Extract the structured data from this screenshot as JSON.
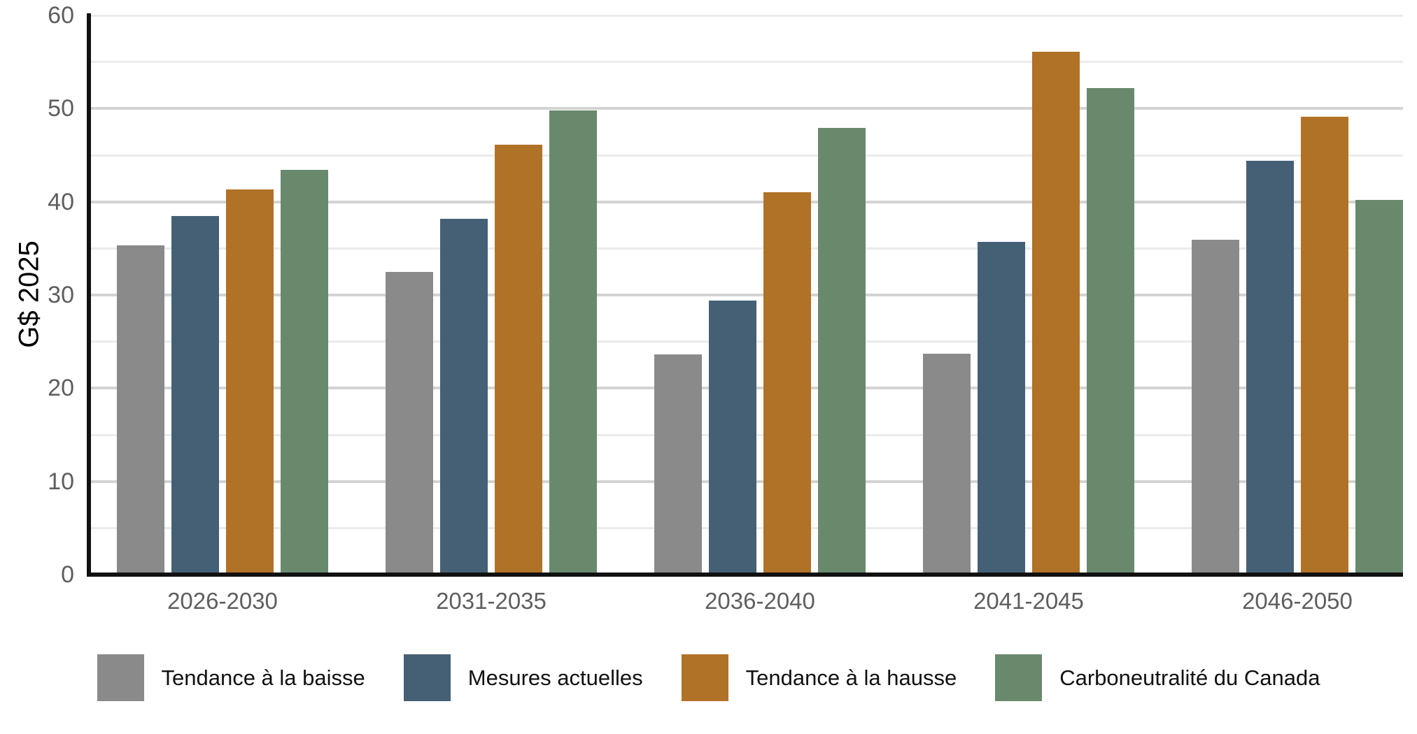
{
  "chart_data": {
    "type": "bar",
    "title": "",
    "ylabel": "G$ 2025",
    "xlabel": "",
    "ylim": [
      0,
      60
    ],
    "y_major_ticks": [
      0,
      10,
      20,
      30,
      40,
      50,
      60
    ],
    "y_minor_step": 5,
    "grid": "horizontal",
    "legend_position": "bottom",
    "categories": [
      "2026-2030",
      "2031-2035",
      "2036-2040",
      "2041-2045",
      "2046-2050"
    ],
    "series": [
      {
        "name": "Tendance à la baisse",
        "color": "#8A8A8A",
        "values": [
          35.3,
          32.5,
          23.6,
          23.7,
          35.9
        ]
      },
      {
        "name": "Mesures actuelles",
        "color": "#456075",
        "values": [
          38.5,
          38.2,
          29.4,
          35.7,
          44.4
        ]
      },
      {
        "name": "Tendance à la hausse",
        "color": "#B07227",
        "values": [
          41.3,
          46.1,
          41.0,
          56.1,
          49.1
        ]
      },
      {
        "name": "Carboneutralité du Canada",
        "color": "#69896D",
        "values": [
          43.4,
          49.8,
          47.9,
          52.2,
          40.2
        ]
      }
    ],
    "colors": {
      "axis": "#111111",
      "grid_major": "#D3D3D3",
      "grid_minor": "#EBEBEB",
      "tick_labels": "#5E5E5E",
      "legend_text": "#111111",
      "background": "#FFFFFF"
    }
  }
}
